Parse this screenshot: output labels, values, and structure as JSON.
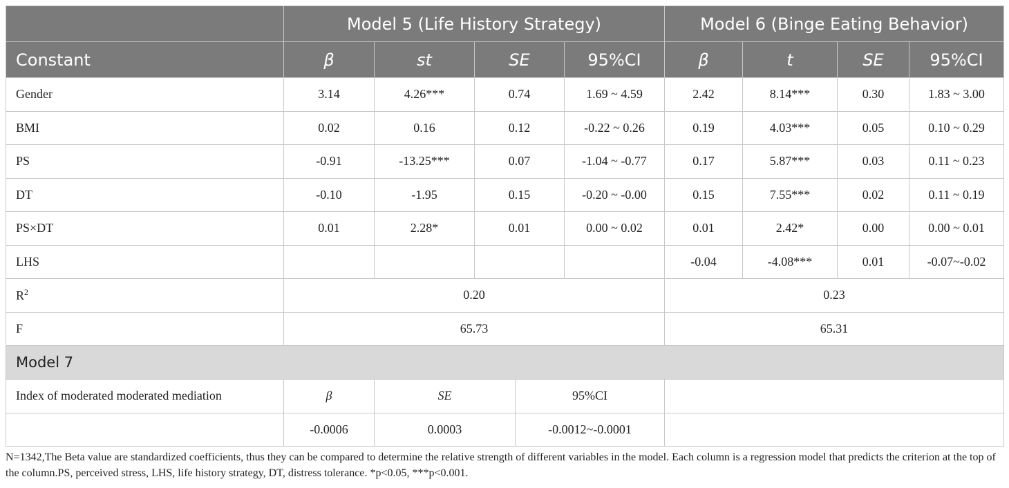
{
  "table": {
    "model5_title": "Model 5 (Life History Strategy)",
    "model6_title": "Model 6 (Binge Eating Behavior)",
    "columns": {
      "constant": "Constant",
      "m5": [
        "β",
        "st",
        "SE",
        "95%CI"
      ],
      "m6": [
        "β",
        "t",
        "SE",
        "95%CI"
      ]
    },
    "rows": [
      {
        "label": "Gender",
        "m5": [
          "3.14",
          "4.26***",
          "0.74",
          "1.69 ~ 4.59"
        ],
        "m6": [
          "2.42",
          "8.14***",
          "0.30",
          "1.83 ~ 3.00"
        ]
      },
      {
        "label": "BMI",
        "m5": [
          "0.02",
          "0.16",
          "0.12",
          "-0.22 ~ 0.26"
        ],
        "m6": [
          "0.19",
          "4.03***",
          "0.05",
          "0.10 ~ 0.29"
        ]
      },
      {
        "label": "PS",
        "m5": [
          "-0.91",
          "-13.25***",
          "0.07",
          "-1.04 ~ -0.77"
        ],
        "m6": [
          "0.17",
          "5.87***",
          "0.03",
          "0.11 ~ 0.23"
        ]
      },
      {
        "label": "DT",
        "m5": [
          "-0.10",
          "-1.95",
          "0.15",
          "-0.20 ~ -0.00"
        ],
        "m6": [
          "0.15",
          "7.55***",
          "0.02",
          "0.11 ~ 0.19"
        ]
      },
      {
        "label": "PS×DT",
        "m5": [
          "0.01",
          "2.28*",
          "0.01",
          "0.00 ~ 0.02"
        ],
        "m6": [
          "0.01",
          "2.42*",
          "0.00",
          "0.00 ~ 0.01"
        ]
      },
      {
        "label": "LHS",
        "m5": [
          "",
          "",
          "",
          ""
        ],
        "m6": [
          "-0.04",
          "-4.08***",
          "0.01",
          "-0.07~-0.02"
        ]
      }
    ],
    "r2": {
      "label_base": "R",
      "label_sup": "2",
      "m5": "0.20",
      "m6": "0.23"
    },
    "f": {
      "label": "F",
      "m5": "65.73",
      "m6": "65.31"
    },
    "model7": {
      "title": "Model 7",
      "index_label": "Index of moderated moderated mediation",
      "headers": [
        "β",
        "SE",
        "95%CI"
      ],
      "values": [
        "-0.0006",
        "0.0003",
        "-0.0012~-0.0001"
      ]
    }
  },
  "note": "N=1342,The Beta value are standardized coefficients, thus they can be compared to determine the relative strength of different variables in the model. Each column is a regression model that predicts the criterion at the top of the column.PS, perceived stress, LHS, life history strategy, DT, distress tolerance. *p<0.05, ***p<0.001."
}
